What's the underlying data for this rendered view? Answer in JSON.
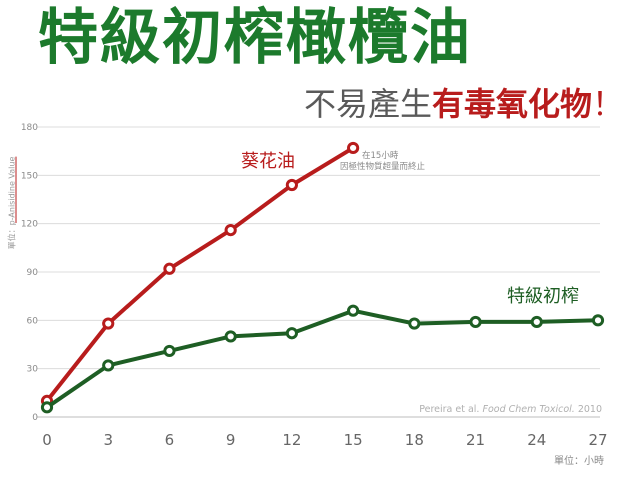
{
  "header": {
    "title": "特級初榨橄欖油",
    "subtitle_normal": "不易產生",
    "subtitle_highlight": "有毒氧化物",
    "subtitle_end": "！"
  },
  "note": {
    "line1": "在15小時",
    "line2": "因極性物質超量而終止"
  },
  "citation": {
    "authors": "Pereira et al. ",
    "journal": "Food Chem Toxicol.",
    "year": " 2010"
  },
  "colors": {
    "title_green": "#1c7a2c",
    "sunflower_red": "#b81c1c",
    "olive_green": "#1e5e24",
    "grid": "#dcdcdc",
    "tick_text": "#8a8a8a"
  },
  "chart_data": {
    "type": "line",
    "ylabel_prefix": "單位：",
    "ylabel_main": "p-Anisidine Value",
    "xlabel": "單位：小時",
    "xlim": [
      0,
      27
    ],
    "ylim": [
      0,
      180
    ],
    "x_ticks": [
      0,
      3,
      6,
      9,
      12,
      15,
      18,
      21,
      24,
      27
    ],
    "y_ticks": [
      0,
      30,
      60,
      90,
      120,
      150,
      180
    ],
    "grid": true,
    "series": [
      {
        "name": "葵花油",
        "color": "#b81c1c",
        "x": [
          0,
          3,
          6,
          9,
          12,
          15
        ],
        "values": [
          10,
          58,
          92,
          116,
          144,
          167
        ]
      },
      {
        "name": "特級初榨",
        "color": "#1e5e24",
        "x": [
          0,
          3,
          6,
          9,
          12,
          15,
          18,
          21,
          24,
          27
        ],
        "values": [
          6,
          32,
          41,
          50,
          52,
          66,
          58,
          59,
          59,
          60
        ]
      }
    ]
  }
}
